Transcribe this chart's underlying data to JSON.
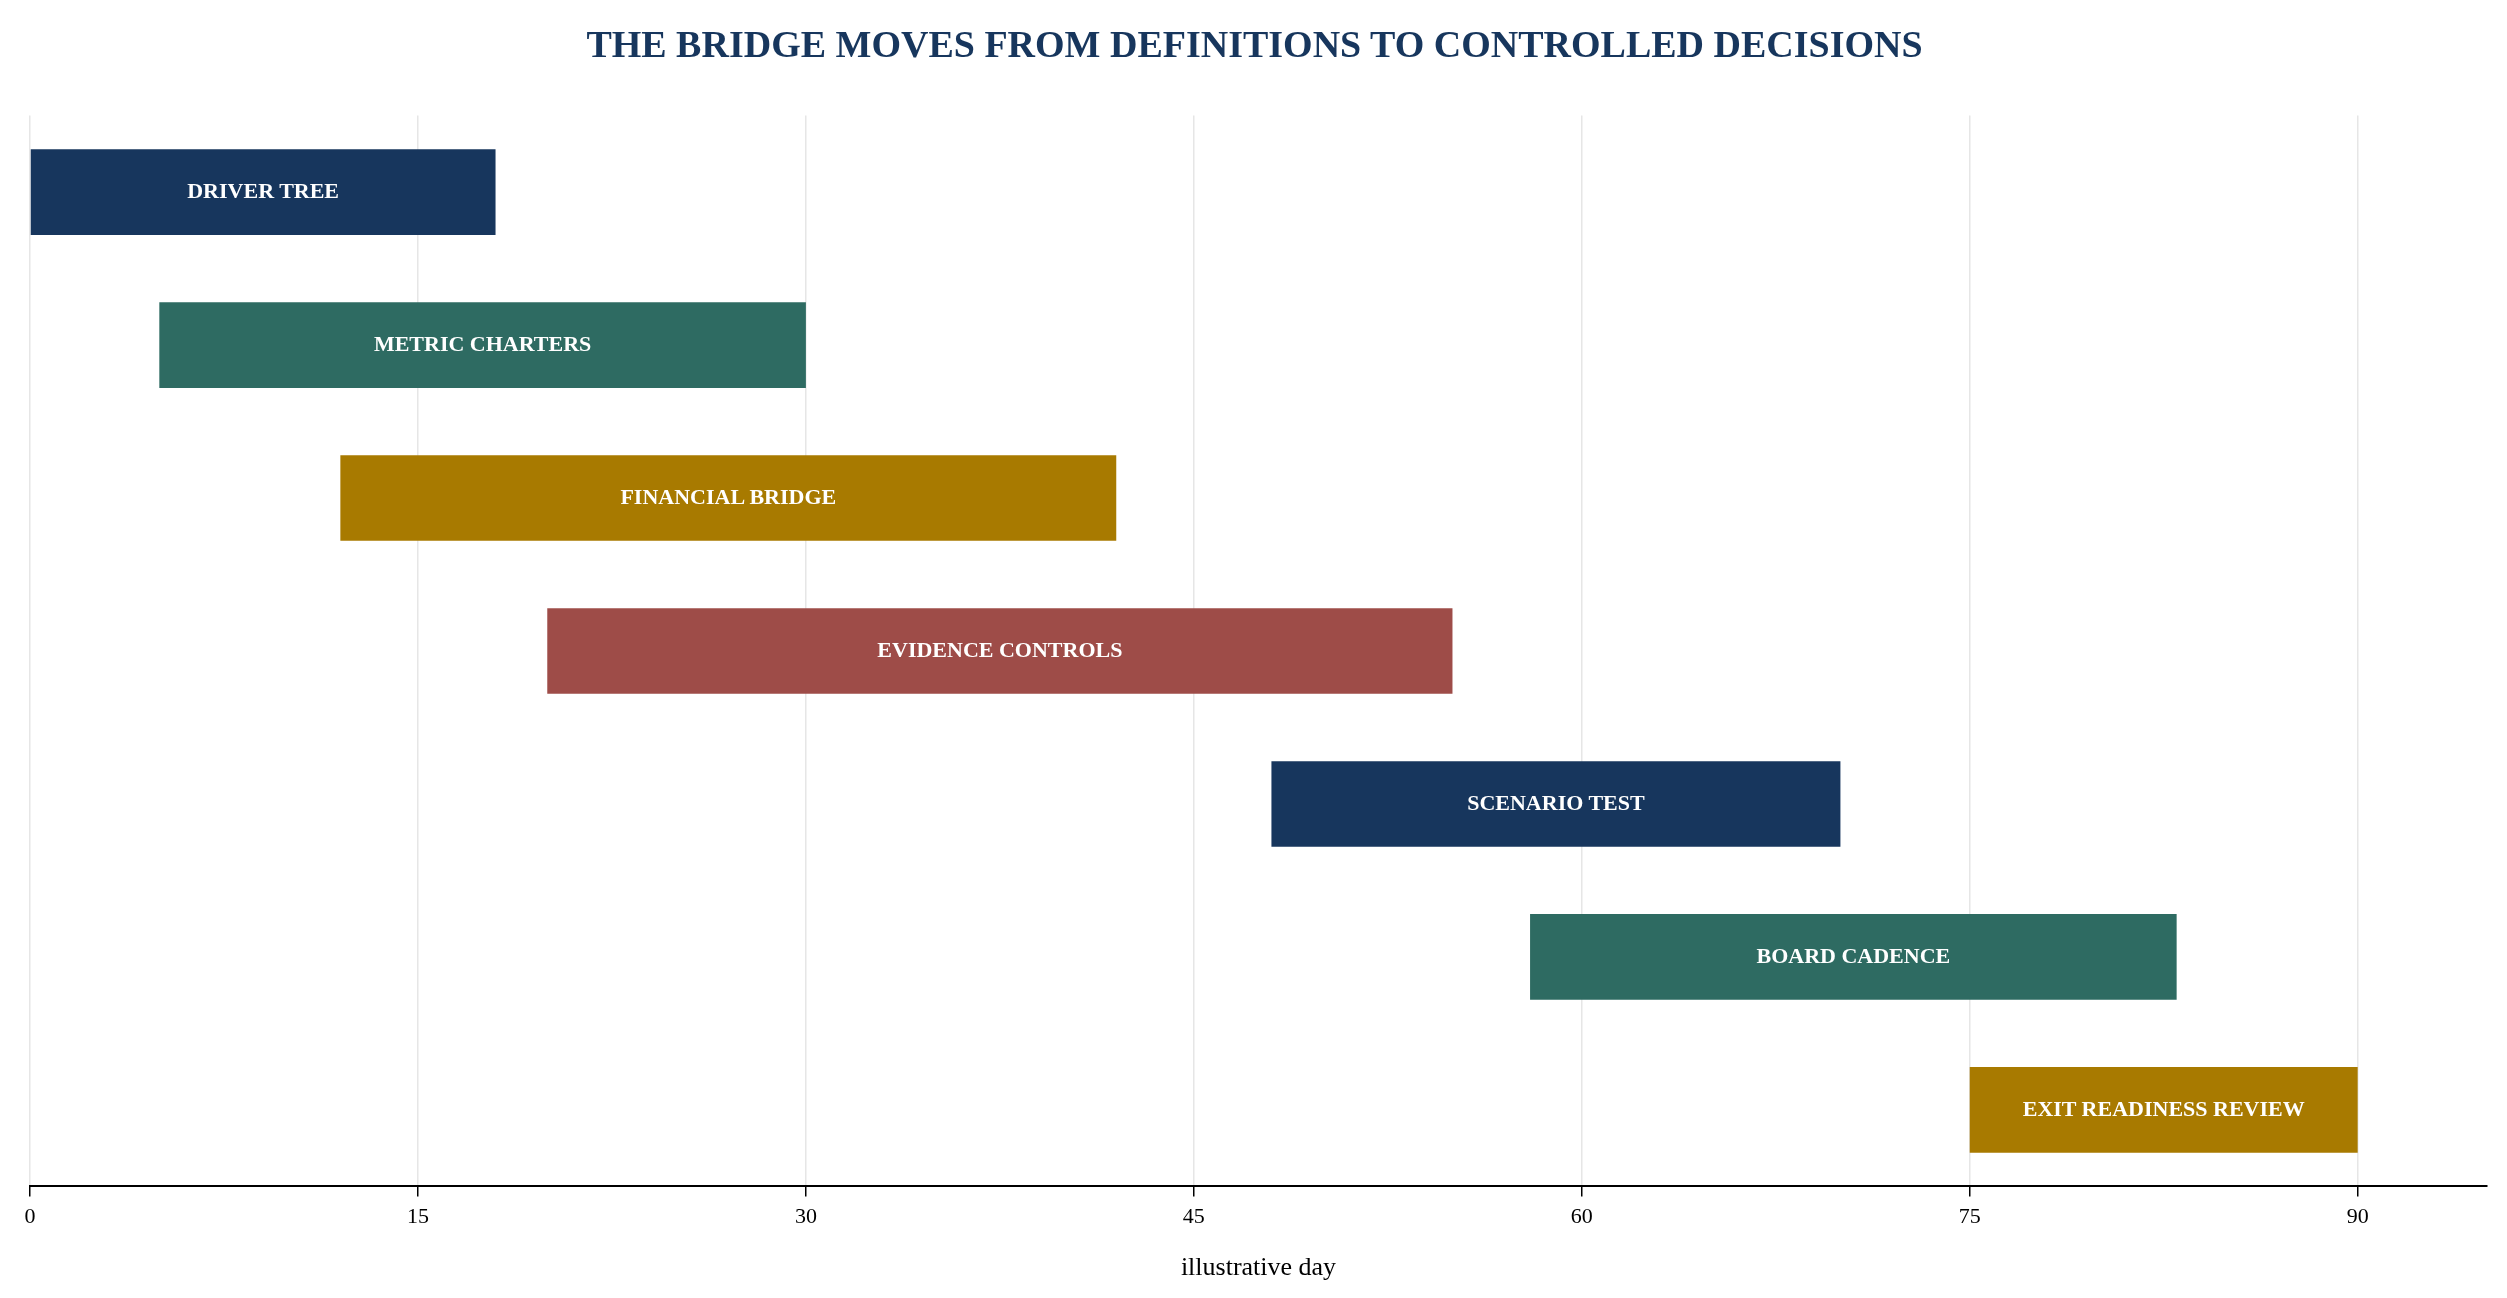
{
  "chart_data": {
    "type": "bar",
    "orientation": "horizontal",
    "title": "THE BRIDGE MOVES FROM DEFINITIONS TO CONTROLLED DECISIONS",
    "xlabel": "illustrative day",
    "categories": [
      "DRIVER TREE",
      "METRIC CHARTERS",
      "FINANCIAL BRIDGE",
      "EVIDENCE CONTROLS",
      "SCENARIO TEST",
      "BOARD CADENCE",
      "EXIT READINESS REVIEW"
    ],
    "base": [
      0,
      5,
      12,
      20,
      48,
      58,
      75
    ],
    "values": [
      18,
      25,
      30,
      35,
      22,
      25,
      15
    ],
    "colors": [
      "#17365d",
      "#2e6b62",
      "#a87a00",
      "#9e4c48",
      "#17365d",
      "#2e6b62",
      "#a87a00"
    ],
    "xlim": [
      0,
      95
    ],
    "xticks": [
      0,
      15,
      30,
      45,
      60,
      75,
      90
    ],
    "grid": "x",
    "tick_labels": "x",
    "legend": false
  }
}
